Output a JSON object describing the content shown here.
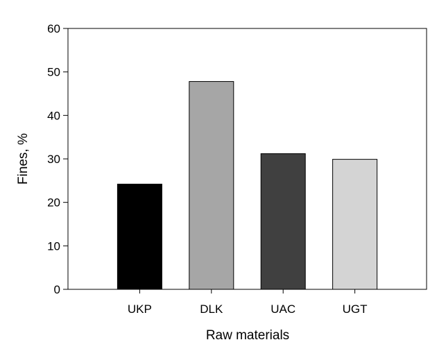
{
  "chart_data": {
    "type": "bar",
    "categories": [
      "UKP",
      "DLK",
      "UAC",
      "UGT"
    ],
    "values": [
      24.2,
      47.8,
      31.2,
      29.9
    ],
    "bar_colors": [
      "#000000",
      "#a6a6a6",
      "#404040",
      "#d4d4d4"
    ],
    "xlabel": "Raw materials",
    "ylabel": "Fines, %",
    "ylim": [
      0,
      60
    ],
    "yticks": [
      0,
      10,
      20,
      30,
      40,
      50,
      60
    ],
    "grid": false,
    "legend": "none"
  }
}
